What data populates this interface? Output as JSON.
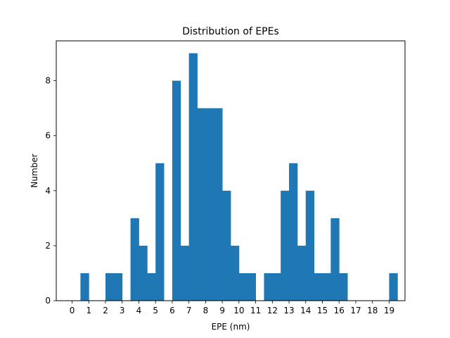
{
  "chart_data": {
    "type": "bar",
    "title": "Distribution of EPEs",
    "xlabel": "EPE (nm)",
    "ylabel": "Number",
    "xlim": [
      -0.95,
      19.95
    ],
    "ylim": [
      0,
      9.45
    ],
    "bin_width": 0.5,
    "bins": [
      {
        "x0": 0.5,
        "value": 1
      },
      {
        "x0": 2.0,
        "value": 1
      },
      {
        "x0": 2.5,
        "value": 1
      },
      {
        "x0": 3.5,
        "value": 3
      },
      {
        "x0": 4.0,
        "value": 2
      },
      {
        "x0": 4.5,
        "value": 1
      },
      {
        "x0": 5.0,
        "value": 5
      },
      {
        "x0": 6.0,
        "value": 8
      },
      {
        "x0": 6.5,
        "value": 2
      },
      {
        "x0": 7.0,
        "value": 9
      },
      {
        "x0": 7.5,
        "value": 7
      },
      {
        "x0": 8.0,
        "value": 7
      },
      {
        "x0": 8.5,
        "value": 7
      },
      {
        "x0": 9.0,
        "value": 4
      },
      {
        "x0": 9.5,
        "value": 2
      },
      {
        "x0": 10.0,
        "value": 1
      },
      {
        "x0": 10.5,
        "value": 1
      },
      {
        "x0": 11.5,
        "value": 1
      },
      {
        "x0": 12.0,
        "value": 1
      },
      {
        "x0": 12.5,
        "value": 4
      },
      {
        "x0": 13.0,
        "value": 5
      },
      {
        "x0": 13.5,
        "value": 2
      },
      {
        "x0": 14.0,
        "value": 4
      },
      {
        "x0": 14.5,
        "value": 1
      },
      {
        "x0": 15.0,
        "value": 1
      },
      {
        "x0": 15.5,
        "value": 3
      },
      {
        "x0": 16.0,
        "value": 1
      },
      {
        "x0": 19.0,
        "value": 1
      }
    ],
    "xticks": [
      "0",
      "1",
      "2",
      "3",
      "4",
      "5",
      "6",
      "7",
      "8",
      "9",
      "10",
      "11",
      "12",
      "13",
      "14",
      "15",
      "16",
      "17",
      "18",
      "19"
    ],
    "yticks": [
      "0",
      "2",
      "4",
      "6",
      "8"
    ],
    "bar_color": "#1f77b4",
    "grid": false,
    "legend": "none"
  }
}
